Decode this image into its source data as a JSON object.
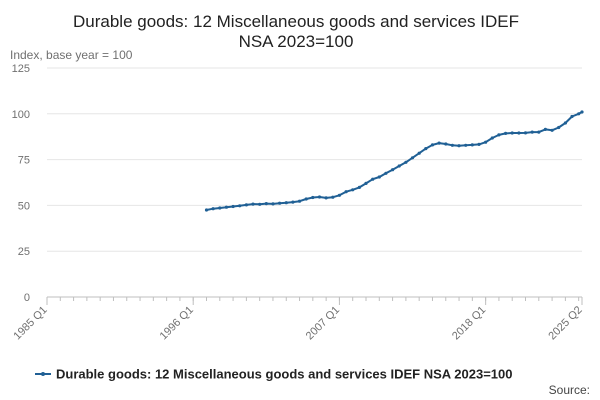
{
  "chart_data": {
    "type": "line",
    "title_lines": [
      "Durable goods: 12 Miscellaneous goods and services IDEF",
      "NSA 2023=100"
    ],
    "ylabel": "Index, base year = 100",
    "ylim": [
      0,
      125
    ],
    "yticks": [
      0,
      25,
      50,
      75,
      100,
      125
    ],
    "xlim": [
      1985.0,
      2025.25
    ],
    "xticks": [
      {
        "value": 1985.0,
        "label": "1985 Q1"
      },
      {
        "value": 1996.0,
        "label": "1996 Q1"
      },
      {
        "value": 2007.0,
        "label": "2007 Q1"
      },
      {
        "value": 2018.0,
        "label": "2018 Q1"
      },
      {
        "value": 2025.25,
        "label": "2025 Q2"
      }
    ],
    "grid": true,
    "legend_position": "bottom",
    "series": [
      {
        "name": "Durable goods: 12 Miscellaneous goods and services IDEF NSA 2023=100",
        "color": "#206095",
        "points": [
          [
            1997.0,
            47.5
          ],
          [
            1997.5,
            48.2
          ],
          [
            1998.0,
            48.6
          ],
          [
            1998.5,
            49.0
          ],
          [
            1999.0,
            49.4
          ],
          [
            1999.5,
            49.8
          ],
          [
            2000.0,
            50.3
          ],
          [
            2000.5,
            50.7
          ],
          [
            2001.0,
            50.6
          ],
          [
            2001.5,
            51.0
          ],
          [
            2002.0,
            50.8
          ],
          [
            2002.5,
            51.2
          ],
          [
            2003.0,
            51.5
          ],
          [
            2003.5,
            51.8
          ],
          [
            2004.0,
            52.3
          ],
          [
            2004.5,
            53.5
          ],
          [
            2005.0,
            54.3
          ],
          [
            2005.5,
            54.6
          ],
          [
            2006.0,
            54.1
          ],
          [
            2006.5,
            54.5
          ],
          [
            2007.0,
            55.5
          ],
          [
            2007.5,
            57.5
          ],
          [
            2008.0,
            58.5
          ],
          [
            2008.5,
            59.8
          ],
          [
            2009.0,
            62.0
          ],
          [
            2009.5,
            64.3
          ],
          [
            2010.0,
            65.5
          ],
          [
            2010.5,
            67.5
          ],
          [
            2011.0,
            69.5
          ],
          [
            2011.5,
            71.5
          ],
          [
            2012.0,
            73.5
          ],
          [
            2012.5,
            76.0
          ],
          [
            2013.0,
            78.5
          ],
          [
            2013.5,
            81.0
          ],
          [
            2014.0,
            83.0
          ],
          [
            2014.5,
            84.0
          ],
          [
            2015.0,
            83.5
          ],
          [
            2015.5,
            82.8
          ],
          [
            2016.0,
            82.6
          ],
          [
            2016.5,
            82.8
          ],
          [
            2017.0,
            83.0
          ],
          [
            2017.5,
            83.3
          ],
          [
            2018.0,
            84.5
          ],
          [
            2018.5,
            86.8
          ],
          [
            2019.0,
            88.5
          ],
          [
            2019.5,
            89.3
          ],
          [
            2020.0,
            89.5
          ],
          [
            2020.5,
            89.5
          ],
          [
            2021.0,
            89.6
          ],
          [
            2021.5,
            90.0
          ],
          [
            2022.0,
            90.0
          ],
          [
            2022.5,
            91.5
          ],
          [
            2023.0,
            91.0
          ],
          [
            2023.5,
            92.5
          ],
          [
            2024.0,
            95.0
          ],
          [
            2024.5,
            98.5
          ],
          [
            2025.0,
            100.0
          ],
          [
            2025.25,
            101.0
          ]
        ]
      }
    ],
    "source": "Source:"
  }
}
